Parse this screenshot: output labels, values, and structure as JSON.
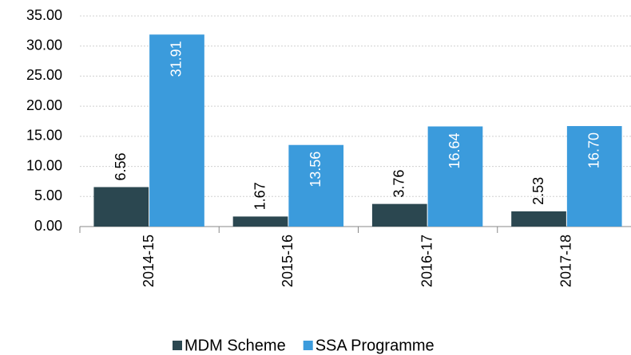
{
  "chart_data": {
    "type": "bar",
    "categories": [
      "2014-15",
      "2015-16",
      "2016-17",
      "2017-18"
    ],
    "series": [
      {
        "name": "MDM Scheme",
        "color": "#2b4750",
        "values": [
          6.56,
          1.67,
          3.76,
          2.53
        ],
        "value_labels": [
          "6.56",
          "1.67",
          "3.76",
          "2.53"
        ]
      },
      {
        "name": "SSA Programme",
        "color": "#3b9bdc",
        "values": [
          31.91,
          13.56,
          16.64,
          16.7
        ],
        "value_labels": [
          "31.91",
          "13.56",
          "16.64",
          "16.70"
        ]
      }
    ],
    "ylim": [
      0,
      35
    ],
    "yticks": [
      {
        "value": 0,
        "label": "0.00"
      },
      {
        "value": 5,
        "label": "5.00"
      },
      {
        "value": 10,
        "label": "10.00"
      },
      {
        "value": 15,
        "label": "15.00"
      },
      {
        "value": 20,
        "label": "20.00"
      },
      {
        "value": 25,
        "label": "25.00"
      },
      {
        "value": 30,
        "label": "30.00"
      },
      {
        "value": 35,
        "label": "35.00"
      }
    ],
    "grid": true,
    "legend": "bottom"
  }
}
